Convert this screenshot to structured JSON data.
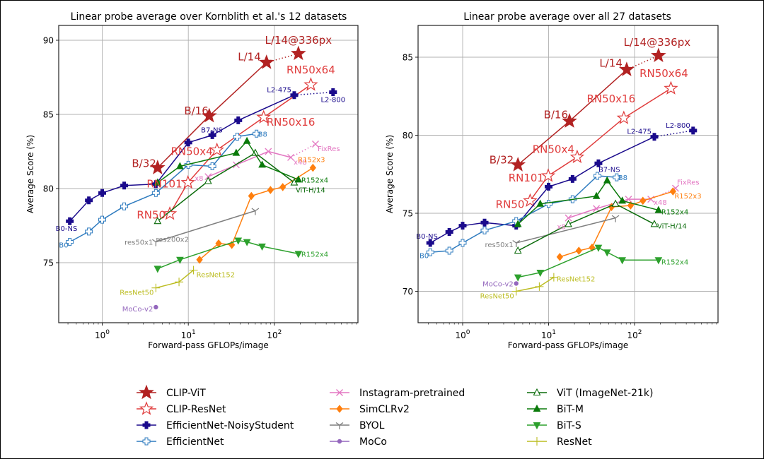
{
  "chart_data": [
    {
      "type": "line",
      "title": "Linear probe average over Kornblith et al.'s 12 datasets",
      "xlabel": "Forward-pass GFLOPs/image",
      "ylabel": "Average Score (%)",
      "xscale": "log",
      "xlim": [
        0.3,
        750
      ],
      "ylim": [
        71,
        91
      ],
      "xticks": [
        1,
        10,
        100
      ],
      "xtick_labels": [
        "10^0",
        "10^1",
        "10^2"
      ],
      "yticks": [
        75,
        80,
        85,
        90
      ],
      "ytick_labels": [
        "75",
        "80",
        "85",
        "90"
      ],
      "grid": true,
      "series": [
        {
          "name": "CLIP-ViT",
          "x": [
            4.4,
            17.5,
            81,
            190
          ],
          "y": [
            81.4,
            84.9,
            88.5,
            89.1
          ],
          "dotted_last": true
        },
        {
          "name": "CLIP-ResNet",
          "x": [
            6.1,
            9.9,
            21.5,
            75,
            265
          ],
          "y": [
            78.3,
            80.4,
            82.6,
            84.8,
            87.0
          ]
        },
        {
          "name": "EfficientNet-NoisyStudent",
          "x": [
            0.42,
            0.7,
            1.0,
            1.8,
            4.2,
            10.0,
            19.0,
            38.0,
            170,
            480
          ],
          "y": [
            77.8,
            79.2,
            79.7,
            80.2,
            80.3,
            83.1,
            83.6,
            84.6,
            86.3,
            86.5
          ],
          "dotted_last": true
        },
        {
          "name": "EfficientNet",
          "x": [
            0.42,
            0.7,
            1.0,
            1.8,
            4.2,
            10.0,
            19.0,
            37.0,
            62.0
          ],
          "y": [
            76.4,
            77.1,
            77.9,
            78.8,
            79.7,
            81.6,
            81.5,
            83.5,
            83.7
          ]
        },
        {
          "name": "Instagram-pretrained",
          "x": [
            17.0,
            36.0,
            85.0,
            155.0,
            300.0
          ],
          "y": [
            80.8,
            81.6,
            82.5,
            82.1,
            83.0
          ],
          "dotted_last": true
        },
        {
          "name": "SimCLRv2",
          "x": [
            13.5,
            22.5,
            32.0,
            54.0,
            90.0,
            125.0,
            280.0
          ],
          "y": [
            75.2,
            76.3,
            76.2,
            79.5,
            79.9,
            80.1,
            81.4
          ]
        },
        {
          "name": "BYOL",
          "x": [
            4.2,
            60.0
          ],
          "y": [
            76.4,
            78.5
          ]
        },
        {
          "name": "MoCo",
          "x": [
            4.2
          ],
          "y": [
            72.0
          ]
        },
        {
          "name": "ViT (ImageNet-21k)",
          "x": [
            4.4,
            17.0,
            60.0,
            170.0
          ],
          "y": [
            77.8,
            80.5,
            82.4,
            80.4
          ]
        },
        {
          "name": "BiT-M",
          "x": [
            4.4,
            8.0,
            36.0,
            48.0,
            72.0,
            190.0
          ],
          "y": [
            80.4,
            81.5,
            82.4,
            83.2,
            81.6,
            80.6
          ]
        },
        {
          "name": "BiT-S",
          "x": [
            4.4,
            8.0,
            38.0,
            48.0,
            72.0,
            190.0
          ],
          "y": [
            74.6,
            75.2,
            76.5,
            76.4,
            76.1,
            75.6
          ]
        },
        {
          "name": "ResNet",
          "x": [
            4.2,
            7.8,
            11.5
          ],
          "y": [
            73.3,
            73.7,
            74.5
          ]
        }
      ],
      "annotations": [
        {
          "text": "L/14@336px",
          "series": "CLIP-ViT"
        },
        {
          "text": "L/14",
          "series": "CLIP-ViT"
        },
        {
          "text": "B/16",
          "series": "CLIP-ViT"
        },
        {
          "text": "B/32",
          "series": "CLIP-ViT"
        },
        {
          "text": "RN50x64",
          "series": "CLIP-ResNet"
        },
        {
          "text": "RN50x16",
          "series": "CLIP-ResNet"
        },
        {
          "text": "RN50x4",
          "series": "CLIP-ResNet"
        },
        {
          "text": "RN101",
          "series": "CLIP-ResNet"
        },
        {
          "text": "RN50",
          "series": "CLIP-ResNet"
        },
        {
          "text": "L2-475",
          "series": "EfficientNet-NoisyStudent"
        },
        {
          "text": "L2-800",
          "series": "EfficientNet-NoisyStudent"
        },
        {
          "text": "B7-NS",
          "series": "EfficientNet-NoisyStudent"
        },
        {
          "text": "B0-NS",
          "series": "EfficientNet-NoisyStudent"
        },
        {
          "text": "B8",
          "series": "EfficientNet"
        },
        {
          "text": "B0",
          "series": "EfficientNet"
        },
        {
          "text": "FixRes",
          "series": "Instagram-pretrained"
        },
        {
          "text": "x48",
          "series": "Instagram-pretrained"
        },
        {
          "text": "x8",
          "series": "Instagram-pretrained"
        },
        {
          "text": "R152x3",
          "series": "SimCLRv2"
        },
        {
          "text": "R152x4",
          "series": "BiT-M"
        },
        {
          "text": "ViT-H/14",
          "series": "ViT (ImageNet-21k)"
        },
        {
          "text": "res200x2",
          "series": "BYOL"
        },
        {
          "text": "res50x1",
          "series": "BYOL"
        },
        {
          "text": "R152x4",
          "series": "BiT-S"
        },
        {
          "text": "ResNet152",
          "series": "ResNet"
        },
        {
          "text": "ResNet50",
          "series": "ResNet"
        },
        {
          "text": "MoCo-v2",
          "series": "MoCo"
        }
      ]
    },
    {
      "type": "line",
      "title": "Linear probe average over all 27 datasets",
      "xlabel": "Forward-pass GFLOPs/image",
      "ylabel": "Average Score (%)",
      "xscale": "log",
      "xlim": [
        0.3,
        750
      ],
      "ylim": [
        68,
        87
      ],
      "xticks": [
        1,
        10,
        100
      ],
      "xtick_labels": [
        "10^0",
        "10^1",
        "10^2"
      ],
      "yticks": [
        70,
        75,
        80,
        85
      ],
      "ytick_labels": [
        "70",
        "75",
        "80",
        "85"
      ],
      "grid": true,
      "series": [
        {
          "name": "CLIP-ViT",
          "x": [
            4.4,
            17.5,
            81,
            190
          ],
          "y": [
            78.1,
            80.9,
            84.2,
            85.1
          ],
          "dotted_last": true
        },
        {
          "name": "CLIP-ResNet",
          "x": [
            6.1,
            9.9,
            21.5,
            75,
            265
          ],
          "y": [
            75.8,
            77.4,
            78.6,
            81.1,
            83.0
          ]
        },
        {
          "name": "EfficientNet-NoisyStudent",
          "x": [
            0.42,
            0.7,
            1.0,
            1.8,
            4.2,
            10.0,
            19.0,
            38.0,
            170,
            480
          ],
          "y": [
            73.1,
            73.8,
            74.2,
            74.4,
            74.2,
            76.7,
            77.2,
            78.2,
            79.9,
            80.3
          ],
          "dotted_last": true
        },
        {
          "name": "EfficientNet",
          "x": [
            0.42,
            0.7,
            1.0,
            1.8,
            4.2,
            10.0,
            19.0,
            37.0,
            62.0
          ],
          "y": [
            72.5,
            72.6,
            73.1,
            73.9,
            74.5,
            75.6,
            75.9,
            77.4,
            77.3
          ]
        },
        {
          "name": "Instagram-pretrained",
          "x": [
            17.0,
            36.0,
            85.0,
            155.0,
            300.0
          ],
          "y": [
            74.7,
            75.3,
            75.9,
            75.9,
            76.6
          ],
          "dotted_last": true
        },
        {
          "name": "SimCLRv2",
          "x": [
            13.5,
            22.5,
            32.0,
            54.0,
            90.0,
            125.0,
            280.0
          ],
          "y": [
            72.2,
            72.6,
            72.8,
            75.4,
            75.5,
            75.8,
            76.4
          ]
        },
        {
          "name": "BYOL",
          "x": [
            4.2,
            60.0
          ],
          "y": [
            73.1,
            74.7
          ]
        },
        {
          "name": "MoCo",
          "x": [
            4.2
          ],
          "y": [
            70.5
          ]
        },
        {
          "name": "ViT (ImageNet-21k)",
          "x": [
            4.4,
            17.0,
            60.0,
            170.0
          ],
          "y": [
            72.6,
            74.3,
            75.6,
            74.3
          ]
        },
        {
          "name": "BiT-M",
          "x": [
            4.4,
            8.0,
            36.0,
            48.0,
            72.0,
            190.0
          ],
          "y": [
            74.3,
            75.6,
            76.1,
            77.1,
            75.8,
            75.2
          ]
        },
        {
          "name": "BiT-S",
          "x": [
            4.4,
            8.0,
            38.0,
            48.0,
            72.0,
            190.0
          ],
          "y": [
            70.9,
            71.2,
            72.8,
            72.5,
            72.0,
            72.0
          ]
        },
        {
          "name": "ResNet",
          "x": [
            4.2,
            7.8,
            11.5
          ],
          "y": [
            70.0,
            70.3,
            70.9
          ]
        }
      ],
      "annotations": [
        {
          "text": "L/14@336px",
          "series": "CLIP-ViT"
        },
        {
          "text": "L/14",
          "series": "CLIP-ViT"
        },
        {
          "text": "B/16",
          "series": "CLIP-ViT"
        },
        {
          "text": "B/32",
          "series": "CLIP-ViT"
        },
        {
          "text": "RN50x64",
          "series": "CLIP-ResNet"
        },
        {
          "text": "RN50x16",
          "series": "CLIP-ResNet"
        },
        {
          "text": "RN50x4",
          "series": "CLIP-ResNet"
        },
        {
          "text": "RN101",
          "series": "CLIP-ResNet"
        },
        {
          "text": "RN50",
          "series": "CLIP-ResNet"
        },
        {
          "text": "L2-475",
          "series": "EfficientNet-NoisyStudent"
        },
        {
          "text": "L2-800",
          "series": "EfficientNet-NoisyStudent"
        },
        {
          "text": "B7-NS",
          "series": "EfficientNet-NoisyStudent"
        },
        {
          "text": "B0-NS",
          "series": "EfficientNet-NoisyStudent"
        },
        {
          "text": "B8",
          "series": "EfficientNet"
        },
        {
          "text": "B0",
          "series": "EfficientNet"
        },
        {
          "text": "FixRes",
          "series": "Instagram-pretrained"
        },
        {
          "text": "x48",
          "series": "Instagram-pretrained"
        },
        {
          "text": "x8",
          "series": "Instagram-pretrained"
        },
        {
          "text": "R152x3",
          "series": "SimCLRv2"
        },
        {
          "text": "R152x4",
          "series": "BiT-M"
        },
        {
          "text": "ViT-H/14",
          "series": "ViT (ImageNet-21k)"
        },
        {
          "text": "res50x1",
          "series": "BYOL"
        },
        {
          "text": "R152x4",
          "series": "BiT-S"
        },
        {
          "text": "ResNet152",
          "series": "ResNet"
        },
        {
          "text": "ResNet50",
          "series": "ResNet"
        },
        {
          "text": "MoCo-v2",
          "series": "MoCo"
        }
      ]
    }
  ],
  "legend": {
    "placement": "bottom-center",
    "entries": [
      {
        "label": "CLIP-ViT",
        "color": "#b22222",
        "marker": "star-filled"
      },
      {
        "label": "CLIP-ResNet",
        "color": "#e03c3c",
        "marker": "star-open"
      },
      {
        "label": "EfficientNet-NoisyStudent",
        "color": "#1a0a8c",
        "marker": "plus-filled"
      },
      {
        "label": "EfficientNet",
        "color": "#2e7bbf",
        "marker": "plus-open"
      },
      {
        "label": "Instagram-pretrained",
        "color": "#e377c2",
        "marker": "x"
      },
      {
        "label": "SimCLRv2",
        "color": "#ff7f0e",
        "marker": "diamond"
      },
      {
        "label": "BYOL",
        "color": "#7f7f7f",
        "marker": "tri-down"
      },
      {
        "label": "MoCo",
        "color": "#9467bd",
        "marker": "circle"
      },
      {
        "label": "ViT (ImageNet-21k)",
        "color": "#0a6b0a",
        "marker": "triangle-open"
      },
      {
        "label": "BiT-M",
        "color": "#0a7a0a",
        "marker": "triangle-filled"
      },
      {
        "label": "BiT-S",
        "color": "#2ca02c",
        "marker": "triangle-down"
      },
      {
        "label": "ResNet",
        "color": "#bcbd22",
        "marker": "plus-thin"
      }
    ]
  }
}
